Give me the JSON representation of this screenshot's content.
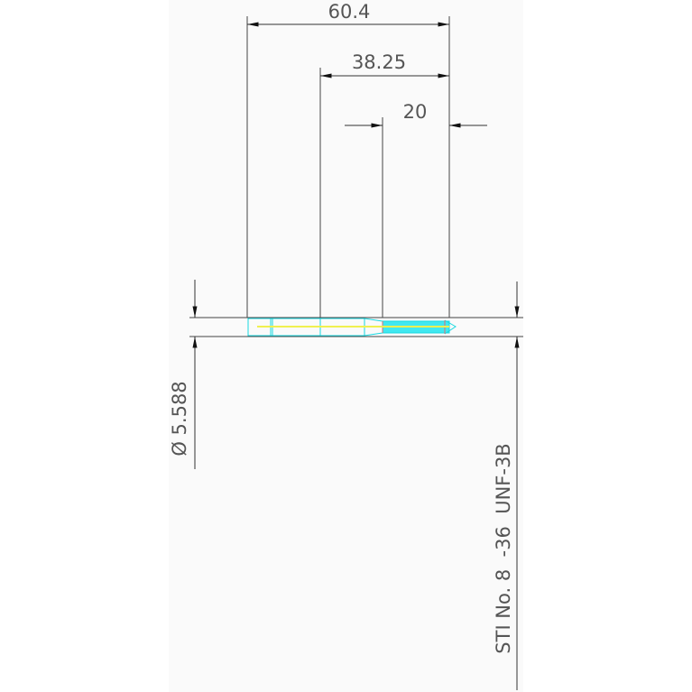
{
  "drawing": {
    "dimensions": {
      "overall_length": "60.4",
      "shank_to_tip": "38.25",
      "thread_length": "20",
      "diameter": "Ø 5.588",
      "thread_spec": "STI No. 8  -36  UNF-3B"
    },
    "colors": {
      "paper": "#fafafa",
      "dimension_lines": "#333333",
      "part_outline": "#18d8e0",
      "centerline": "#f0f050",
      "thread_end": "#e07070"
    }
  }
}
